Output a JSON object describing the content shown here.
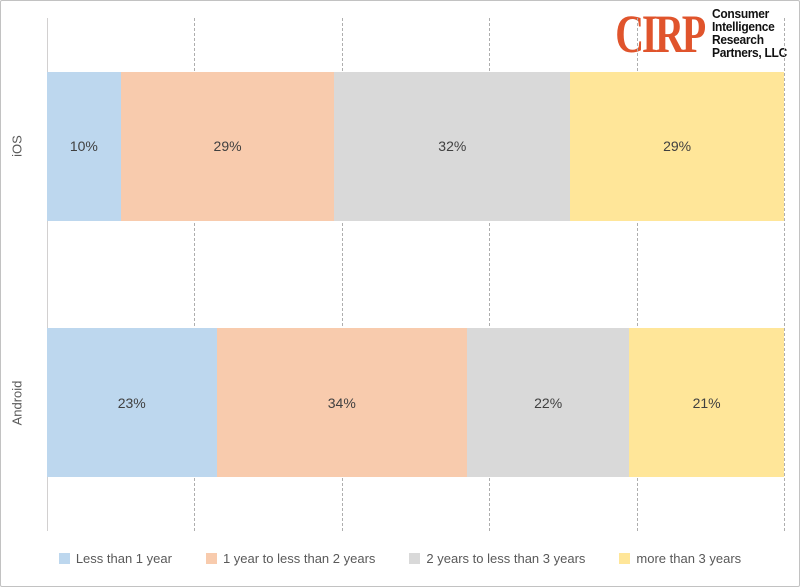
{
  "logo": {
    "wordmark": "CIRP",
    "org_lines": [
      "Consumer",
      "Intelligence",
      "Research",
      "Partners, LLC"
    ],
    "accent_color": "#E0542C"
  },
  "chart_data": {
    "type": "bar",
    "orientation": "horizontal",
    "stacked": true,
    "categories": [
      "iOS",
      "Android"
    ],
    "series": [
      {
        "name": "Less than 1 year",
        "color": "#BDD7EE",
        "values": [
          10,
          23
        ]
      },
      {
        "name": "1 year to less than 2 years",
        "color": "#F8CBAD",
        "values": [
          29,
          34
        ]
      },
      {
        "name": "2 years to less than 3 years",
        "color": "#D9D9D9",
        "values": [
          32,
          22
        ]
      },
      {
        "name": "more than 3 years",
        "color": "#FFE699",
        "values": [
          29,
          21
        ]
      }
    ],
    "value_suffix": "%",
    "xlim": [
      0,
      100
    ],
    "gridlines_percent": [
      20,
      40,
      60,
      80,
      100
    ],
    "grid_style": "dashed",
    "legend_position": "bottom",
    "title": "",
    "label_color": "#404040"
  }
}
